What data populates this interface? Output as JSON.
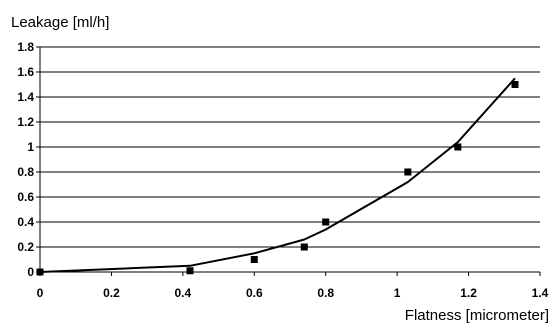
{
  "chart_data": {
    "type": "scatter",
    "title": "",
    "xlabel": "Flatness [micrometer]",
    "ylabel": "Leakage [ml/h]",
    "xlim": [
      0,
      1.4
    ],
    "ylim": [
      0,
      1.8
    ],
    "x_ticks": [
      0,
      0.2,
      0.4,
      0.6,
      0.8,
      1,
      1.2,
      1.4
    ],
    "y_ticks": [
      0,
      0.2,
      0.4,
      0.6,
      0.8,
      1,
      1.2,
      1.4,
      1.6,
      1.8
    ],
    "x_tick_labels": [
      "0",
      "0.2",
      "0.4",
      "0.6",
      "0.8",
      "1",
      "1.2",
      "1.4"
    ],
    "y_tick_labels": [
      "0",
      "0.2",
      "0.4",
      "0.6",
      "0.8",
      "1",
      "1.2",
      "1.4",
      "1.6",
      "1.8"
    ],
    "grid": "horizontal",
    "legend": "none",
    "series": [
      {
        "type": "scatter",
        "marker": "square",
        "color": "#000000",
        "x": [
          0,
          0.42,
          0.6,
          0.74,
          0.8,
          1.03,
          1.17,
          1.33
        ],
        "y": [
          0,
          0.01,
          0.1,
          0.2,
          0.4,
          0.8,
          1.0,
          1.5
        ]
      },
      {
        "type": "line",
        "color": "#000000",
        "x": [
          0,
          0.42,
          0.6,
          0.74,
          0.8,
          1.03,
          1.17,
          1.33
        ],
        "y": [
          0,
          0.05,
          0.15,
          0.26,
          0.34,
          0.72,
          1.04,
          1.55
        ]
      }
    ]
  }
}
